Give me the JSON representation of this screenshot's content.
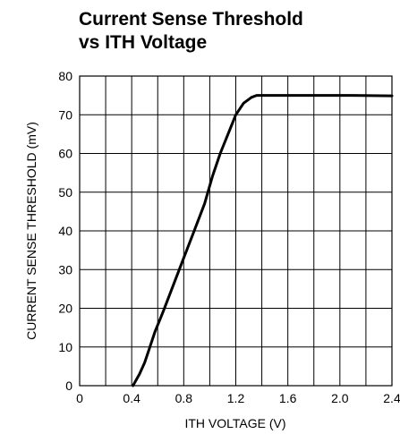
{
  "chart_data": {
    "type": "line",
    "title_lines": [
      "Current Sense Threshold",
      "vs ITH Voltage"
    ],
    "xlabel": "ITH VOLTAGE (V)",
    "ylabel": "CURRENT SENSE THRESHOLD (mV)",
    "xlim": [
      0,
      2.4
    ],
    "ylim": [
      0,
      80
    ],
    "x_ticks": [
      0,
      0.2,
      0.4,
      0.6,
      0.8,
      1.0,
      1.2,
      1.4,
      1.6,
      1.8,
      2.0,
      2.2,
      2.4
    ],
    "x_tick_labels": [
      "0",
      "",
      "0.4",
      "",
      "0.8",
      "",
      "1.2",
      "",
      "1.6",
      "",
      "2.0",
      "",
      "2.4"
    ],
    "y_ticks": [
      0,
      10,
      20,
      30,
      40,
      50,
      60,
      70,
      80
    ],
    "y_tick_labels": [
      "0",
      "10",
      "20",
      "30",
      "40",
      "50",
      "60",
      "70",
      "80"
    ],
    "grid": true,
    "series": [
      {
        "x": [
          0.41,
          0.46,
          0.5,
          0.54,
          0.58,
          0.64,
          0.72,
          0.8,
          0.88,
          0.96,
          1.02,
          1.08,
          1.14,
          1.2,
          1.26,
          1.32,
          1.36,
          1.4,
          1.5,
          1.8,
          2.1,
          2.4
        ],
        "values": [
          0,
          3,
          6,
          10,
          14,
          19,
          26,
          33,
          40,
          47,
          54,
          60,
          65,
          70,
          73,
          74.5,
          75,
          75,
          75,
          75,
          75,
          74.9
        ]
      }
    ]
  }
}
